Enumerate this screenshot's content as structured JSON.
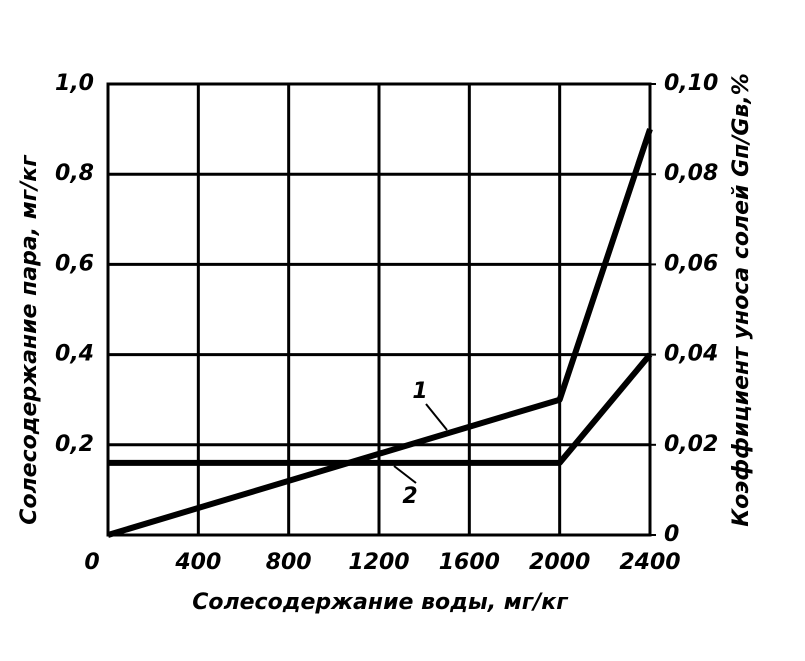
{
  "chart_data": {
    "type": "line",
    "xlabel": "Солесодержание воды, мг/кг",
    "ylabel": "Солесодержание пара, мг/кг",
    "y2label": "Коэффициент уноса солей Gп/Gв,%",
    "xlim": [
      0,
      2400
    ],
    "xticks": [
      0,
      400,
      800,
      1200,
      1600,
      2000,
      2400
    ],
    "ylim": [
      0,
      1.0
    ],
    "yticks": [
      {
        "value": 0.2,
        "label": "0,2"
      },
      {
        "value": 0.4,
        "label": "0,4"
      },
      {
        "value": 0.6,
        "label": "0,6"
      },
      {
        "value": 0.8,
        "label": "0,8"
      },
      {
        "value": 1.0,
        "label": "1,0"
      }
    ],
    "y2lim": [
      0,
      0.1
    ],
    "y2ticks": [
      0,
      {
        "value": 0.02,
        "label": "0,02"
      },
      {
        "value": 0.04,
        "label": "0,04"
      },
      {
        "value": 0.06,
        "label": "0,06"
      },
      {
        "value": 0.08,
        "label": "0,08"
      },
      {
        "value": 0.1,
        "label": "0,10"
      }
    ],
    "grid": true,
    "series": [
      {
        "name": "1",
        "color": "#000000",
        "x": [
          0,
          2000,
          2400
        ],
        "values": [
          0,
          0.3,
          0.9
        ]
      },
      {
        "name": "2",
        "color": "#000000",
        "axis": "y2",
        "x": [
          0,
          2000,
          2400
        ],
        "values": [
          0.016,
          0.016,
          0.04
        ]
      }
    ]
  }
}
